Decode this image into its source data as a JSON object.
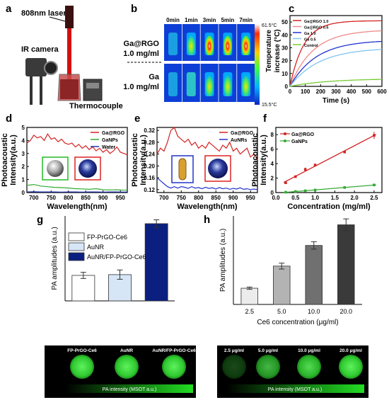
{
  "panel_letters": {
    "a": "a",
    "b": "b",
    "c": "c",
    "d": "d",
    "e": "e",
    "f": "f",
    "g": "g",
    "h": "h"
  },
  "panel_a": {
    "laser": "808nm laser",
    "camera": "IR camera",
    "thermo": "Thermocouple"
  },
  "panel_b": {
    "times": [
      "0min",
      "1min",
      "3min",
      "5min",
      "7min"
    ],
    "row1": [
      "Ga@RGO",
      "1.0 mg/ml"
    ],
    "row2": [
      "Ga",
      "1.0 mg/ml"
    ],
    "scale_max": "61.5°C",
    "scale_min": "15.5°C"
  },
  "chart_data": [
    {
      "id": "c",
      "type": "line",
      "xlabel": "Time (s)",
      "ylabel": [
        "Temperature",
        "increase (°C)"
      ],
      "xlim": [
        0,
        600
      ],
      "ylim": [
        0,
        55
      ],
      "xticks": [
        "0",
        "100",
        "200",
        "300",
        "400",
        "500",
        "600"
      ],
      "yticks": [
        "0",
        "10",
        "20",
        "30",
        "40",
        "50"
      ],
      "legend_position": "top-left",
      "series": [
        {
          "name": "Ga@RGO 1.0",
          "color": "#d32222",
          "plateau": 51,
          "tau": 90
        },
        {
          "name": "Ga@RGO 0.5",
          "color": "#f08a8a",
          "plateau": 44,
          "tau": 150
        },
        {
          "name": "Ga 1.0",
          "color": "#2233cc",
          "plateau": 36,
          "tau": 170
        },
        {
          "name": "Ga 0.5",
          "color": "#7fc4f0",
          "plateau": 30,
          "tau": 190
        },
        {
          "name": "Control",
          "color": "#77cc33",
          "plateau": 6,
          "tau": 250
        }
      ]
    },
    {
      "id": "d",
      "type": "line",
      "xlabel": "Wavelength(nm)",
      "ylabel": [
        "Photoacoustic",
        "Intensity(a.u.)"
      ],
      "xlim": [
        680,
        970
      ],
      "ylim": [
        0,
        5
      ],
      "xticks": [
        "700",
        "750",
        "800",
        "850",
        "900",
        "950"
      ],
      "yticks": [
        "0",
        "1",
        "2",
        "3",
        "4",
        "5"
      ],
      "legend_position": "top-right",
      "series": [
        {
          "name": "Ga@RGO",
          "color": "#d32222",
          "x": [
            680,
            690,
            700,
            710,
            720,
            730,
            740,
            750,
            760,
            770,
            780,
            790,
            800,
            810,
            820,
            830,
            840,
            850,
            860,
            870,
            880,
            890,
            900,
            910,
            920,
            930,
            940,
            950,
            960,
            970
          ],
          "y": [
            3.8,
            4.0,
            4.4,
            4.2,
            4.3,
            4.0,
            4.5,
            4.1,
            4.2,
            3.9,
            4.1,
            3.8,
            3.7,
            3.8,
            3.5,
            3.7,
            3.4,
            3.6,
            3.3,
            3.5,
            3.2,
            3.4,
            3.1,
            3.3,
            3.0,
            3.2,
            3.5,
            3.1,
            3.0,
            2.9
          ]
        },
        {
          "name": "GaNPs",
          "color": "#33aa33",
          "x": [
            680,
            700,
            720,
            740,
            760,
            780,
            800,
            820,
            840,
            860,
            880,
            900,
            920,
            940,
            960,
            970
          ],
          "y": [
            0.55,
            0.62,
            0.5,
            0.45,
            0.4,
            0.38,
            0.35,
            0.3,
            0.28,
            0.25,
            0.3,
            0.22,
            0.2,
            0.22,
            0.18,
            0.2
          ]
        },
        {
          "name": "Water",
          "color": "#2233aa",
          "x": [
            680,
            700,
            720,
            740,
            760,
            780,
            800,
            820,
            840,
            860,
            880,
            900,
            920,
            940,
            960,
            970
          ],
          "y": [
            0.05,
            0.06,
            0.05,
            0.05,
            0.05,
            0.04,
            0.05,
            0.05,
            0.04,
            0.05,
            0.05,
            0.04,
            0.05,
            0.05,
            0.04,
            0.05
          ]
        }
      ]
    },
    {
      "id": "e",
      "type": "line",
      "xlabel": "Wavelength(nm)",
      "ylabel": [
        "Photoacoustic",
        "Intensity(a.u.)"
      ],
      "xlim": [
        680,
        970
      ],
      "ylim": [
        0.11,
        0.33
      ],
      "xticks": [
        "700",
        "750",
        "800",
        "850",
        "900",
        "950"
      ],
      "yticks": [
        "0.12",
        "0.16",
        "0.20",
        "0.24",
        "0.28",
        "0.32"
      ],
      "legend_position": "top-right",
      "series": [
        {
          "name": "Ga@RGO",
          "color": "#d32222",
          "x": [
            680,
            690,
            700,
            710,
            720,
            730,
            740,
            750,
            760,
            770,
            780,
            790,
            800,
            810,
            820,
            830,
            840,
            850,
            860,
            870,
            880,
            890,
            900,
            910,
            920,
            930,
            940,
            950,
            960,
            970
          ],
          "y": [
            0.24,
            0.26,
            0.25,
            0.28,
            0.32,
            0.33,
            0.3,
            0.29,
            0.28,
            0.29,
            0.27,
            0.28,
            0.26,
            0.27,
            0.26,
            0.28,
            0.27,
            0.26,
            0.25,
            0.27,
            0.26,
            0.28,
            0.25,
            0.26,
            0.24,
            0.25,
            0.26,
            0.23,
            0.24,
            0.22
          ]
        },
        {
          "name": "AuNRs",
          "color": "#2233cc",
          "x": [
            680,
            690,
            700,
            710,
            720,
            730,
            740,
            750,
            760,
            770,
            780,
            790,
            800,
            810,
            820,
            830,
            840,
            850,
            860,
            870,
            880,
            890,
            900,
            910,
            920,
            930,
            940,
            950,
            960,
            970
          ],
          "y": [
            0.16,
            0.15,
            0.14,
            0.13,
            0.125,
            0.13,
            0.125,
            0.13,
            0.128,
            0.124,
            0.13,
            0.125,
            0.127,
            0.123,
            0.128,
            0.124,
            0.126,
            0.122,
            0.127,
            0.123,
            0.125,
            0.121,
            0.124,
            0.122,
            0.126,
            0.121,
            0.123,
            0.12,
            0.122,
            0.12
          ]
        }
      ]
    },
    {
      "id": "f",
      "type": "scatter",
      "xlabel": "Concentration (mg/ml)",
      "ylabel": [
        "Photoacoustic",
        "Intensity(a.u.)"
      ],
      "xlim": [
        0,
        2.7
      ],
      "ylim": [
        0,
        9
      ],
      "xticks": [
        "0.0",
        "0.5",
        "1.0",
        "1.5",
        "2.0",
        "2.5"
      ],
      "yticks": [
        "0",
        "2",
        "4",
        "6",
        "8"
      ],
      "legend_position": "top-left",
      "series": [
        {
          "name": "Ga@RGO",
          "color": "#d32222",
          "x": [
            0.25,
            0.5,
            0.75,
            1.0,
            1.75,
            2.5
          ],
          "y": [
            1.35,
            2.2,
            3.2,
            3.8,
            5.6,
            7.9
          ],
          "err": [
            0.1,
            0.1,
            0.25,
            0.2,
            0.15,
            0.5
          ]
        },
        {
          "name": "GaNPs",
          "color": "#33aa33",
          "x": [
            0.25,
            0.5,
            0.75,
            1.0,
            1.75,
            2.5
          ],
          "y": [
            0.05,
            0.15,
            0.25,
            0.35,
            0.7,
            1.05
          ],
          "err": [
            0.03,
            0.03,
            0.03,
            0.03,
            0.05,
            0.06
          ]
        }
      ]
    },
    {
      "id": "g",
      "type": "bar",
      "ylabel": "PA amplitudes (a.u.)",
      "legend_position": "top-left",
      "categories": [
        "FP-PrGO-Ce6",
        "AuNR",
        "AuNR/FP-PrGO-Ce6"
      ],
      "values": [
        0.33,
        0.34,
        1.0
      ],
      "err": [
        0.04,
        0.06,
        0.05
      ],
      "colors": [
        "#ffffff",
        "#d6e6f7",
        "#0a1f80"
      ]
    },
    {
      "id": "h",
      "type": "bar",
      "ylabel": "PA amplitudes (a.u.)",
      "xlabel": "Ce6 concentration (μg/ml)",
      "categories": [
        "2.5",
        "5.0",
        "10.0",
        "20.0"
      ],
      "values": [
        0.22,
        0.52,
        0.8,
        1.08
      ],
      "err": [
        0.015,
        0.04,
        0.05,
        0.08
      ],
      "colors": [
        "#ececec",
        "#b3b3b3",
        "#707070",
        "#3a3a3a"
      ]
    }
  ],
  "pa_strips": {
    "left_labels": [
      "FP-PrGO-Ce6",
      "AuNR",
      "AuNR/FP-PrGO-Ce6"
    ],
    "right_labels": [
      "2.5 μg/ml",
      "5.0 μg/ml",
      "10.0 μg/ml",
      "20.0 μg/ml"
    ],
    "scale_label": "PA intensity (MSOT a.u.)"
  }
}
